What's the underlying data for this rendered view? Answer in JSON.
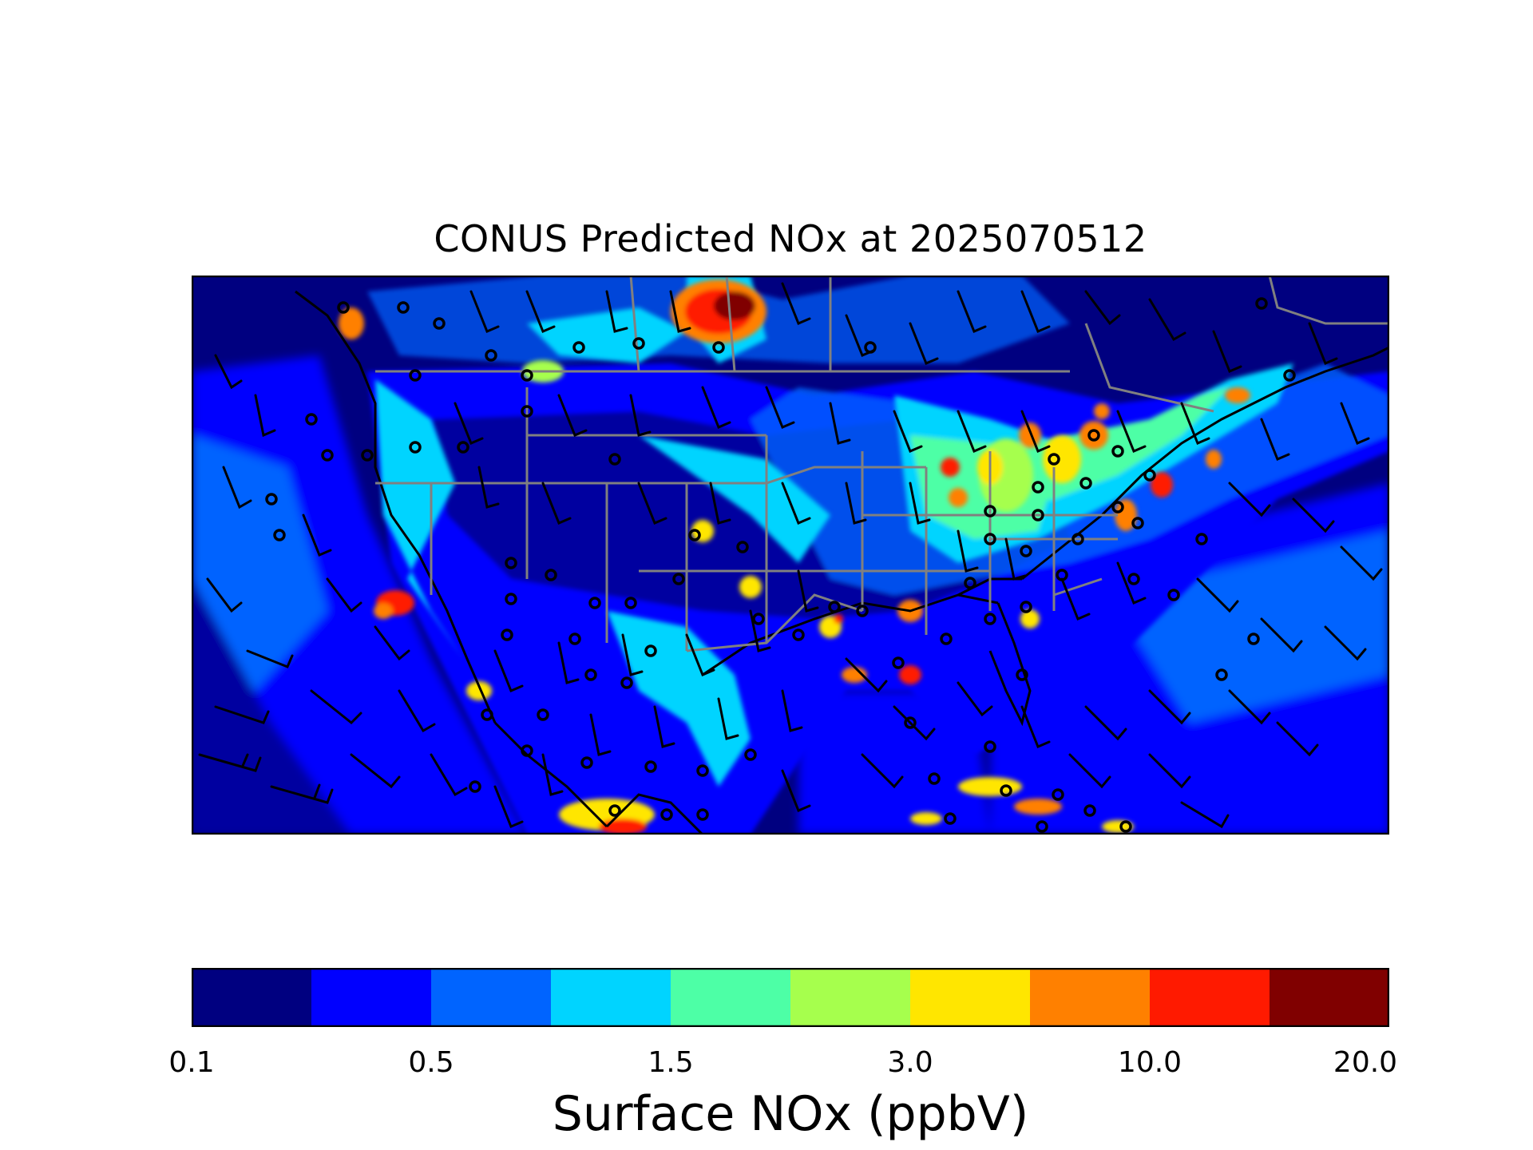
{
  "figure": {
    "title": "CONUS Predicted NOx at 2025070512",
    "colorbar": {
      "label": "Surface NOx (ppbV)",
      "tick_labels": [
        "0.1",
        "0.5",
        "1.5",
        "3.0",
        "10.0",
        "20.0"
      ],
      "colors": [
        "#000080",
        "#0000ff",
        "#0064ff",
        "#00d4ff",
        "#4dffa6",
        "#a6ff4d",
        "#ffe600",
        "#ff8000",
        "#ff1a00",
        "#800000"
      ]
    },
    "map": {
      "region": "CONUS",
      "overlays": [
        "wind-barbs",
        "station-markers",
        "state-borders",
        "coastlines"
      ]
    }
  }
}
